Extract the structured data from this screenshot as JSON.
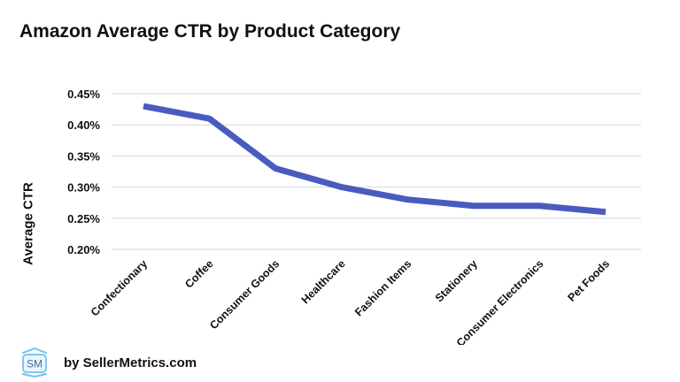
{
  "chart_data": {
    "type": "line",
    "title": "Amazon Average CTR by Product Category",
    "xlabel": "",
    "ylabel": "Average CTR",
    "categories": [
      "Confectionary",
      "Coffee",
      "Consumer Goods",
      "Healthcare",
      "Fashion Items",
      "Stationery",
      "Consumer Electronics",
      "Pet Foods"
    ],
    "series": [
      {
        "values": [
          0.43,
          0.41,
          0.33,
          0.3,
          0.28,
          0.27,
          0.27,
          0.26
        ],
        "color": "#4a5bbf"
      }
    ],
    "y_ticks": [
      "0.20%",
      "0.25%",
      "0.30%",
      "0.35%",
      "0.40%",
      "0.45%"
    ],
    "ylim": [
      0.2,
      0.45
    ],
    "y_unit": "%",
    "grid": true,
    "legend": "none"
  },
  "footer": {
    "logo_text": "SM",
    "text": "by SellerMetrics.com"
  }
}
